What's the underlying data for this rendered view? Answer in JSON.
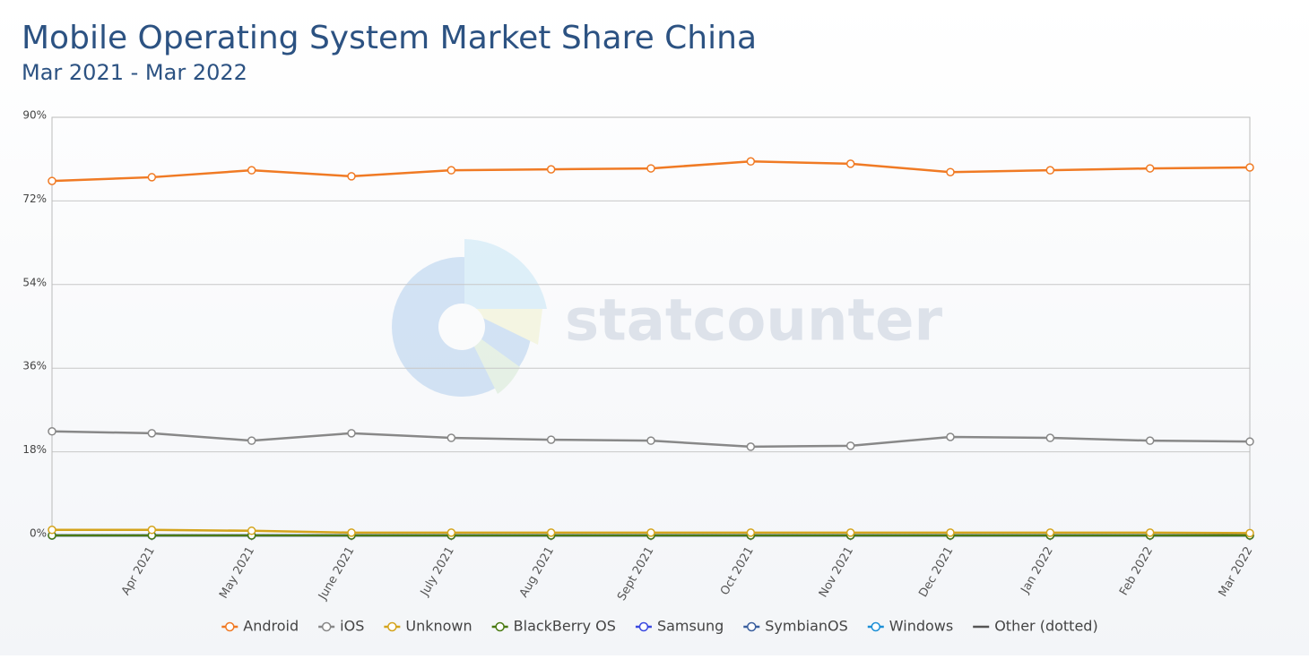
{
  "chart_data": {
    "type": "line",
    "title": "Mobile Operating System Market Share China",
    "subtitle": "Mar 2021 - Mar 2022",
    "watermark": "statcounter",
    "categories": [
      null,
      "Apr 2021",
      "May 2021",
      "June 2021",
      "July 2021",
      "Aug 2021",
      "Sept 2021",
      "Oct 2021",
      "Nov 2021",
      "Dec 2021",
      "Jan 2022",
      "Feb 2022",
      "Mar 2022"
    ],
    "series": [
      {
        "name": "Android",
        "color": "#f07a24",
        "style": "solid",
        "values": [
          76.3,
          77.1,
          78.6,
          77.3,
          78.6,
          78.8,
          79.0,
          80.5,
          80.0,
          78.2,
          78.6,
          79.0,
          79.2
        ]
      },
      {
        "name": "iOS",
        "color": "#888888",
        "style": "solid",
        "values": [
          22.4,
          22.0,
          20.4,
          22.0,
          21.0,
          20.6,
          20.4,
          19.1,
          19.3,
          21.2,
          21.0,
          20.4,
          20.2
        ]
      },
      {
        "name": "Unknown",
        "color": "#d4a41c",
        "style": "solid",
        "values": [
          1.2,
          1.2,
          1.0,
          0.6,
          0.6,
          0.6,
          0.6,
          0.6,
          0.6,
          0.6,
          0.6,
          0.6,
          0.5
        ]
      },
      {
        "name": "BlackBerry OS",
        "color": "#4a7a12",
        "style": "solid",
        "values": [
          0,
          0,
          0,
          0,
          0,
          0,
          0,
          0,
          0,
          0,
          0,
          0,
          0
        ]
      },
      {
        "name": "Samsung",
        "color": "#3b49e0",
        "style": "solid",
        "values": [
          0,
          0,
          0,
          0,
          0,
          0,
          0,
          0,
          0,
          0,
          0,
          0,
          0
        ]
      },
      {
        "name": "SymbianOS",
        "color": "#3a5f9e",
        "style": "solid",
        "values": [
          0,
          0,
          0,
          0,
          0,
          0,
          0,
          0,
          0,
          0,
          0,
          0,
          0
        ]
      },
      {
        "name": "Windows",
        "color": "#1c8fd6",
        "style": "solid",
        "values": [
          0.02,
          0.02,
          0.02,
          0.02,
          0.02,
          0.02,
          0.02,
          0.02,
          0.02,
          0.02,
          0.02,
          0.02,
          0.02
        ]
      },
      {
        "name": "Other (dotted)",
        "color": "#555555",
        "style": "dotted",
        "values": [
          0.1,
          0.1,
          0.1,
          0.1,
          0.1,
          0.1,
          0.1,
          0.1,
          0.1,
          0.1,
          0.1,
          0.1,
          0.1
        ]
      }
    ],
    "ylim": [
      0,
      90
    ],
    "yticks": [
      {
        "value": 0,
        "label": "0%"
      },
      {
        "value": 18,
        "label": "18%"
      },
      {
        "value": 36,
        "label": "36%"
      },
      {
        "value": 54,
        "label": "54%"
      },
      {
        "value": 72,
        "label": "72%"
      },
      {
        "value": 90,
        "label": "90%"
      }
    ],
    "grid": true
  }
}
